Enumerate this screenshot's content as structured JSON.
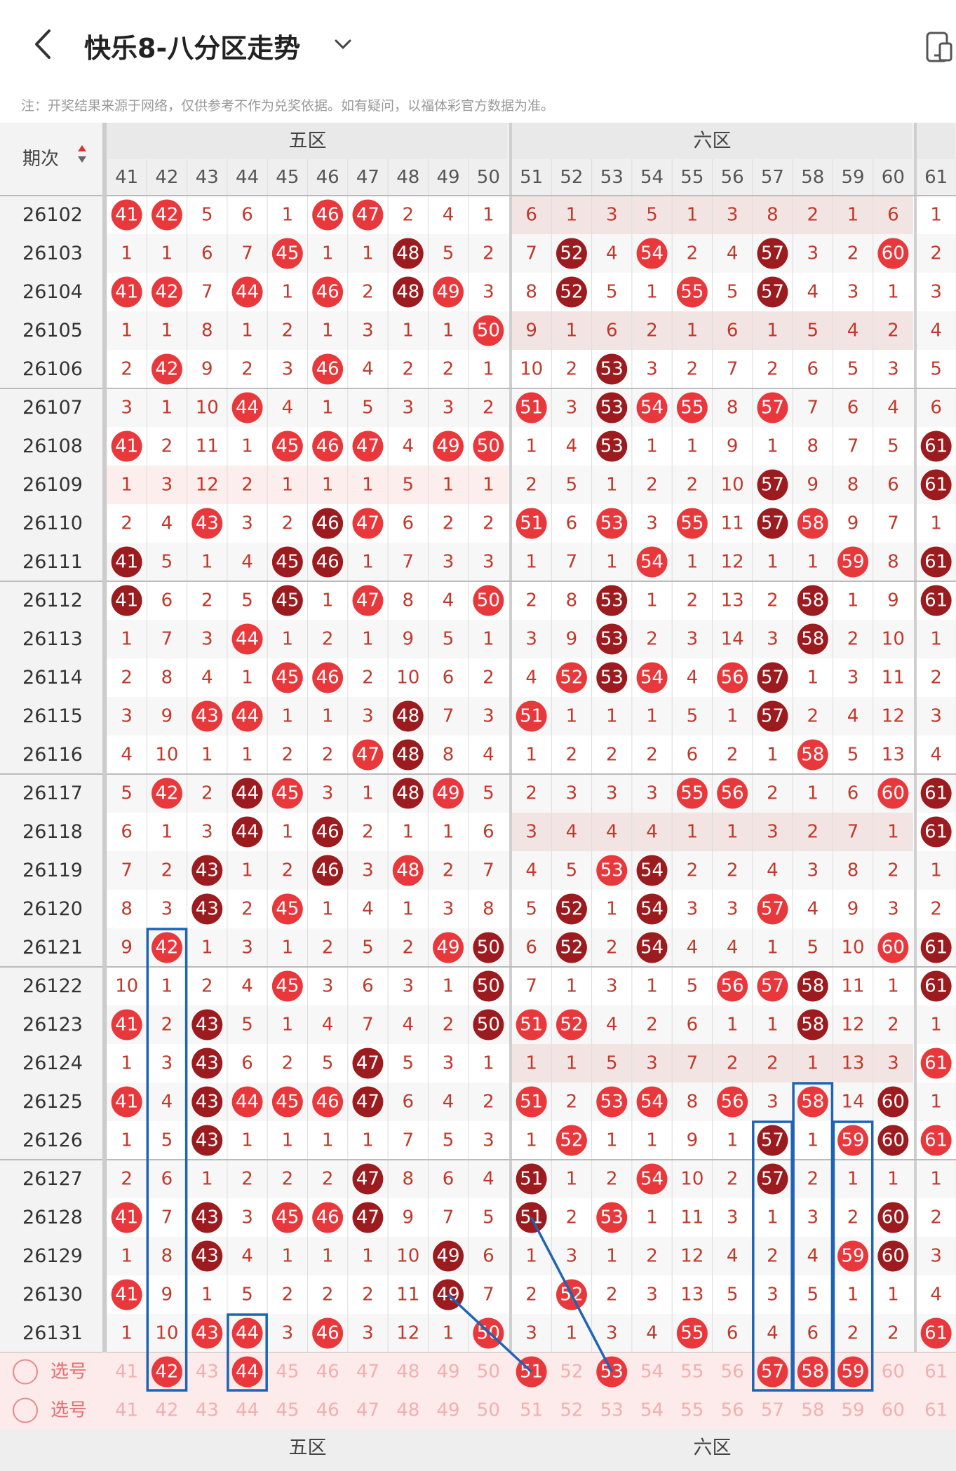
{
  "header": {
    "title": "快乐8-八分区走势",
    "back_icon": "back-arrow-icon",
    "dropdown_icon": "chevron-down-icon",
    "device_icon": "phone-icon"
  },
  "notice": "注：开奖结果来源于网络，仅供参考不作为兑奖依据。如有疑问，以福体彩官方数据为准。",
  "table": {
    "period_header": "期次",
    "sort_icon": "sort-icon",
    "zones": [
      {
        "name": "五区",
        "numbers": [
          41,
          42,
          43,
          44,
          45,
          46,
          47,
          48,
          49,
          50
        ]
      },
      {
        "name": "六区",
        "numbers": [
          51,
          52,
          53,
          54,
          55,
          56,
          57,
          58,
          59,
          60
        ]
      },
      {
        "name": "",
        "numbers": [
          61
        ]
      }
    ],
    "select_label": "选号",
    "rows": [
      {
        "issue": "26102",
        "cells": [
          41,
          42,
          5,
          6,
          1,
          46,
          47,
          2,
          4,
          1,
          6,
          1,
          3,
          5,
          1,
          3,
          8,
          2,
          1,
          6,
          1
        ]
      },
      {
        "issue": "26103",
        "cells": [
          1,
          1,
          6,
          7,
          45,
          1,
          1,
          48,
          5,
          2,
          7,
          52,
          4,
          54,
          2,
          4,
          57,
          3,
          2,
          60,
          2
        ]
      },
      {
        "issue": "26104",
        "cells": [
          41,
          42,
          7,
          44,
          1,
          46,
          2,
          48,
          49,
          3,
          8,
          52,
          5,
          1,
          55,
          5,
          57,
          4,
          3,
          1,
          3
        ]
      },
      {
        "issue": "26105",
        "cells": [
          1,
          1,
          8,
          1,
          2,
          1,
          3,
          1,
          1,
          50,
          9,
          1,
          6,
          2,
          1,
          6,
          1,
          5,
          4,
          2,
          4
        ]
      },
      {
        "issue": "26106",
        "cells": [
          2,
          42,
          9,
          2,
          3,
          46,
          4,
          2,
          2,
          1,
          10,
          2,
          53,
          3,
          2,
          7,
          2,
          6,
          5,
          3,
          5
        ]
      },
      {
        "issue": "26107",
        "cells": [
          3,
          1,
          10,
          44,
          4,
          1,
          5,
          3,
          3,
          2,
          51,
          3,
          53,
          54,
          55,
          8,
          57,
          7,
          6,
          4,
          6
        ]
      },
      {
        "issue": "26108",
        "cells": [
          41,
          2,
          11,
          1,
          45,
          46,
          47,
          4,
          49,
          50,
          1,
          4,
          53,
          1,
          1,
          9,
          1,
          8,
          7,
          5,
          61
        ]
      },
      {
        "issue": "26109",
        "cells": [
          1,
          3,
          12,
          2,
          1,
          1,
          1,
          5,
          1,
          1,
          2,
          5,
          1,
          2,
          2,
          10,
          57,
          9,
          8,
          6,
          61
        ]
      },
      {
        "issue": "26110",
        "cells": [
          2,
          4,
          43,
          3,
          2,
          46,
          47,
          6,
          2,
          2,
          51,
          6,
          53,
          3,
          55,
          11,
          57,
          58,
          9,
          7,
          1
        ]
      },
      {
        "issue": "26111",
        "cells": [
          41,
          5,
          1,
          4,
          45,
          46,
          1,
          7,
          3,
          3,
          1,
          7,
          1,
          54,
          1,
          12,
          1,
          1,
          59,
          8,
          61
        ]
      },
      {
        "issue": "26112",
        "cells": [
          41,
          6,
          2,
          5,
          45,
          1,
          47,
          8,
          4,
          50,
          2,
          8,
          53,
          1,
          2,
          13,
          2,
          58,
          1,
          9,
          61
        ]
      },
      {
        "issue": "26113",
        "cells": [
          1,
          7,
          3,
          44,
          1,
          2,
          1,
          9,
          5,
          1,
          3,
          9,
          53,
          2,
          3,
          14,
          3,
          58,
          2,
          10,
          1
        ]
      },
      {
        "issue": "26114",
        "cells": [
          2,
          8,
          4,
          1,
          45,
          46,
          2,
          10,
          6,
          2,
          4,
          52,
          53,
          54,
          4,
          56,
          57,
          1,
          3,
          11,
          2
        ]
      },
      {
        "issue": "26115",
        "cells": [
          3,
          9,
          43,
          44,
          1,
          1,
          3,
          48,
          7,
          3,
          51,
          1,
          1,
          1,
          5,
          1,
          57,
          2,
          4,
          12,
          3
        ]
      },
      {
        "issue": "26116",
        "cells": [
          4,
          10,
          1,
          1,
          2,
          2,
          47,
          48,
          8,
          4,
          1,
          2,
          2,
          2,
          6,
          2,
          1,
          58,
          5,
          13,
          4
        ]
      },
      {
        "issue": "26117",
        "cells": [
          5,
          42,
          2,
          44,
          45,
          3,
          1,
          48,
          49,
          5,
          2,
          3,
          3,
          3,
          55,
          56,
          2,
          1,
          6,
          60,
          61
        ]
      },
      {
        "issue": "26118",
        "cells": [
          6,
          1,
          3,
          44,
          1,
          46,
          2,
          1,
          1,
          6,
          3,
          4,
          4,
          4,
          1,
          1,
          3,
          2,
          7,
          1,
          61
        ]
      },
      {
        "issue": "26119",
        "cells": [
          7,
          2,
          43,
          1,
          2,
          46,
          3,
          48,
          2,
          7,
          4,
          5,
          53,
          54,
          2,
          2,
          4,
          3,
          8,
          2,
          1
        ]
      },
      {
        "issue": "26120",
        "cells": [
          8,
          3,
          43,
          2,
          45,
          1,
          4,
          1,
          3,
          8,
          5,
          52,
          1,
          54,
          3,
          3,
          57,
          4,
          9,
          3,
          2
        ]
      },
      {
        "issue": "26121",
        "cells": [
          9,
          42,
          1,
          3,
          1,
          2,
          5,
          2,
          49,
          50,
          6,
          52,
          2,
          54,
          4,
          4,
          1,
          5,
          10,
          60,
          61
        ]
      },
      {
        "issue": "26122",
        "cells": [
          10,
          1,
          2,
          4,
          45,
          3,
          6,
          3,
          1,
          50,
          7,
          1,
          3,
          1,
          5,
          56,
          57,
          58,
          11,
          1,
          61
        ]
      },
      {
        "issue": "26123",
        "cells": [
          41,
          2,
          43,
          5,
          1,
          4,
          7,
          4,
          2,
          50,
          51,
          52,
          4,
          2,
          6,
          1,
          1,
          58,
          12,
          2,
          1
        ]
      },
      {
        "issue": "26124",
        "cells": [
          1,
          3,
          43,
          6,
          2,
          5,
          47,
          5,
          3,
          1,
          1,
          1,
          5,
          3,
          7,
          2,
          2,
          1,
          13,
          3,
          61
        ]
      },
      {
        "issue": "26125",
        "cells": [
          41,
          4,
          43,
          44,
          45,
          46,
          47,
          6,
          4,
          2,
          51,
          2,
          53,
          54,
          8,
          56,
          3,
          58,
          14,
          60,
          1
        ]
      },
      {
        "issue": "26126",
        "cells": [
          1,
          5,
          43,
          1,
          1,
          1,
          1,
          7,
          5,
          3,
          1,
          52,
          1,
          1,
          9,
          1,
          57,
          1,
          59,
          60,
          61
        ]
      },
      {
        "issue": "26127",
        "cells": [
          2,
          6,
          1,
          2,
          2,
          2,
          47,
          8,
          6,
          4,
          51,
          1,
          2,
          54,
          10,
          2,
          57,
          2,
          1,
          1,
          1
        ]
      },
      {
        "issue": "26128",
        "cells": [
          41,
          7,
          43,
          3,
          45,
          46,
          47,
          9,
          7,
          5,
          51,
          2,
          53,
          1,
          11,
          3,
          1,
          3,
          2,
          60,
          2
        ]
      },
      {
        "issue": "26129",
        "cells": [
          1,
          8,
          43,
          4,
          1,
          1,
          1,
          10,
          49,
          6,
          1,
          3,
          1,
          2,
          12,
          4,
          2,
          4,
          59,
          60,
          3
        ]
      },
      {
        "issue": "26130",
        "cells": [
          41,
          9,
          1,
          5,
          2,
          2,
          2,
          11,
          49,
          7,
          2,
          52,
          2,
          3,
          13,
          5,
          3,
          5,
          1,
          1,
          4
        ]
      },
      {
        "issue": "26131",
        "cells": [
          1,
          10,
          43,
          44,
          3,
          46,
          3,
          12,
          1,
          50,
          3,
          1,
          3,
          4,
          55,
          6,
          4,
          6,
          2,
          2,
          61
        ]
      }
    ],
    "selection_rows": [
      {
        "selected": [
          42,
          44,
          51,
          53,
          57,
          58,
          59
        ]
      },
      {
        "selected": []
      }
    ]
  },
  "colors": {
    "red_ball": "#e8383c",
    "dark_ball": "#9b1b1f",
    "miss_text": "#c0392b",
    "header_bg": "#efefef",
    "shade_row": "#f3e4e4",
    "annotation": "#1f63b5"
  }
}
